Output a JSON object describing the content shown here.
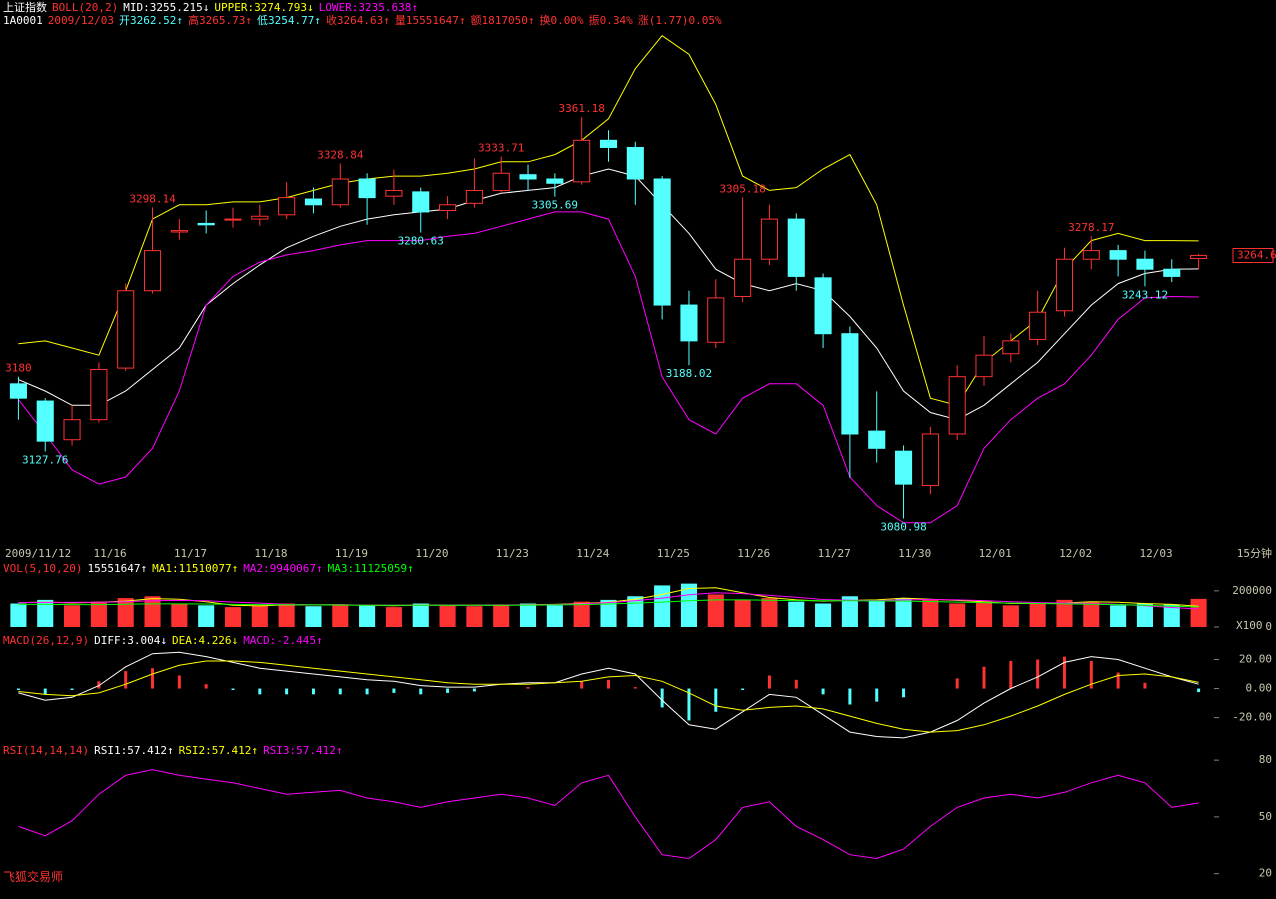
{
  "header": {
    "title_line": [
      {
        "text": "上证指数",
        "color": "#ffffff"
      },
      {
        "text": "BOLL(20,2)",
        "color": "#ff3232"
      },
      {
        "text": "MID:3255.215↓",
        "color": "#ffffff"
      },
      {
        "text": "UPPER:3274.793↓",
        "color": "#ffff00"
      },
      {
        "text": "LOWER:3235.638↑",
        "color": "#ff00ff"
      }
    ],
    "info_line": [
      {
        "text": "1A0001",
        "color": "#ffffff"
      },
      {
        "text": "2009/12/03",
        "color": "#ff3232"
      },
      {
        "text": "开3262.52↑",
        "color": "#54ffff"
      },
      {
        "text": "高3265.73↑",
        "color": "#ff3232"
      },
      {
        "text": "低3254.77↑",
        "color": "#54ffff"
      },
      {
        "text": "收3264.63↑",
        "color": "#ff3232"
      },
      {
        "text": "量15551647↑",
        "color": "#ff3232"
      },
      {
        "text": "额1817050↑",
        "color": "#ff3232"
      },
      {
        "text": "换0.00%",
        "color": "#ff3232"
      },
      {
        "text": "振0.34%",
        "color": "#ff3232"
      },
      {
        "text": "涨(1.77)0.05%",
        "color": "#ff3232"
      }
    ],
    "software": "飞狐交易师"
  },
  "chart_data": [
    {
      "type": "candlestick",
      "period": "15分钟",
      "x": [
        "2009/11/12",
        null,
        null,
        "11/16",
        null,
        null,
        "11/17",
        null,
        null,
        "11/18",
        null,
        null,
        "11/19",
        null,
        null,
        "11/20",
        null,
        null,
        "11/23",
        null,
        null,
        "11/24",
        null,
        null,
        "11/25",
        null,
        null,
        "11/26",
        null,
        null,
        "11/27",
        null,
        null,
        "11/30",
        null,
        null,
        "12/01",
        null,
        null,
        "12/02",
        null,
        null,
        "12/03",
        null,
        null
      ],
      "open": [
        3175,
        3163,
        3136,
        3150,
        3186,
        3240,
        3281,
        3287,
        3290,
        3290,
        3293,
        3304,
        3300,
        3318,
        3306,
        3309,
        3296,
        3301,
        3310,
        3321,
        3318,
        3316,
        3345,
        3340,
        3318,
        3230,
        3204,
        3236,
        3262,
        3290,
        3249,
        3210,
        3142,
        3128,
        3104,
        3140,
        3180,
        3196,
        3206,
        3226,
        3262,
        3268,
        3262,
        3255,
        3262.52
      ],
      "high": [
        3180,
        3165,
        3160,
        3190,
        3245,
        3298.14,
        3290,
        3296,
        3298,
        3300,
        3315.85,
        3312,
        3328.84,
        3322,
        3324.52,
        3312,
        3306,
        3332.33,
        3333.71,
        3328,
        3322,
        3361.18,
        3352,
        3344,
        3320,
        3240,
        3248,
        3305.18,
        3300,
        3294,
        3252,
        3215,
        3169.75,
        3132,
        3145,
        3188,
        3208.38,
        3210,
        3240,
        3270,
        3278.17,
        3272,
        3268,
        3262,
        3265.73
      ],
      "low": [
        3150,
        3127.76,
        3132,
        3148,
        3184,
        3238,
        3275.6,
        3280,
        3284,
        3285.34,
        3290,
        3294,
        3298,
        3286.06,
        3300,
        3280.63,
        3290,
        3298,
        3308.1,
        3310,
        3305.69,
        3314,
        3330,
        3300,
        3220,
        3188.02,
        3200,
        3232,
        3258,
        3240,
        3200,
        3109.36,
        3120,
        3080.98,
        3098,
        3136,
        3173.67,
        3190,
        3202,
        3222,
        3255,
        3250,
        3243.12,
        3246,
        3254.77
      ],
      "close": [
        3165,
        3135,
        3150,
        3185,
        3240,
        3268,
        3282,
        3286,
        3290,
        3292,
        3305,
        3300,
        3318,
        3305,
        3310,
        3295,
        3300,
        3310,
        3322,
        3318,
        3315,
        3345,
        3340,
        3318,
        3230,
        3205,
        3235,
        3262,
        3290,
        3250,
        3210,
        3140,
        3130,
        3105,
        3140,
        3180,
        3195,
        3205,
        3225,
        3262,
        3268,
        3262,
        3255,
        3250,
        3264.63
      ],
      "up_color": "#ff3232",
      "down_color": "#54ffff",
      "high_label_color": "#ff3232",
      "low_label_color": "#54ffff",
      "lines": [
        {
          "color": "#ffff00",
          "values": [
            3203,
            3205,
            3200,
            3195,
            3240,
            3290,
            3300,
            3300,
            3302,
            3302,
            3305,
            3310,
            3315,
            3318,
            3320,
            3320,
            3322,
            3325,
            3330,
            3330,
            3335,
            3345,
            3360,
            3395,
            3418,
            3405,
            3370,
            3320,
            3310,
            3312,
            3325,
            3335,
            3300,
            3230,
            3165,
            3160,
            3190,
            3205,
            3220,
            3255,
            3275,
            3280,
            3275,
            3275,
            3274.793
          ]
        },
        {
          "color": "#ffffff",
          "values": [
            3178,
            3170,
            3160,
            3160,
            3170,
            3185,
            3200,
            3230,
            3245,
            3258,
            3270,
            3278,
            3285,
            3290,
            3293,
            3295,
            3297,
            3303,
            3308,
            3310,
            3312,
            3320,
            3325,
            3320,
            3300,
            3280,
            3255,
            3245,
            3240,
            3245,
            3240,
            3222,
            3200,
            3170,
            3155,
            3150,
            3160,
            3175,
            3190,
            3210,
            3230,
            3245,
            3252,
            3255,
            3255.215
          ]
        },
        {
          "color": "#ff00ff",
          "values": [
            3164,
            3140,
            3115,
            3105,
            3110,
            3130,
            3170,
            3230,
            3250,
            3260,
            3265,
            3268,
            3272,
            3275,
            3275,
            3275,
            3278,
            3280,
            3285,
            3290,
            3295,
            3295,
            3290,
            3250,
            3180,
            3150,
            3140,
            3165,
            3175,
            3175,
            3160,
            3110,
            3090,
            3078,
            3078,
            3090,
            3130,
            3150,
            3165,
            3175,
            3195,
            3220,
            3235,
            3236,
            3235.638
          ]
        }
      ],
      "price_tag": 3264.6,
      "ylim": [
        3066,
        3422
      ]
    },
    {
      "type": "volume",
      "info": [
        {
          "text": "VOL(5,10,20)",
          "color": "#ff3232"
        },
        {
          "text": "15551647↑",
          "color": "#ffffff"
        },
        {
          "text": "MA1:11510077↑",
          "color": "#ffff00"
        },
        {
          "text": "MA2:9940067↑",
          "color": "#ff00ff"
        },
        {
          "text": "MA3:11125059↑",
          "color": "#00ff00"
        }
      ],
      "values": [
        130000,
        150000,
        120000,
        140000,
        160000,
        170000,
        130000,
        120000,
        110000,
        120000,
        130000,
        115000,
        125000,
        120000,
        110000,
        130000,
        120000,
        115000,
        125000,
        130000,
        120000,
        140000,
        150000,
        170000,
        230000,
        240000,
        180000,
        150000,
        160000,
        140000,
        130000,
        170000,
        150000,
        160000,
        150000,
        130000,
        140000,
        120000,
        130000,
        150000,
        140000,
        120000,
        130000,
        125000,
        155516
      ],
      "lines": [
        {
          "color": "#ffff00",
          "values": [
            135000,
            138000,
            133000,
            137000,
            143000,
            157000,
            153000,
            140000,
            120000,
            117000,
            123000,
            122000,
            123000,
            120000,
            118000,
            122000,
            120000,
            121000,
            120000,
            123000,
            125000,
            130000,
            137000,
            153000,
            180000,
            213000,
            217000,
            190000,
            163000,
            150000,
            143000,
            147000,
            150000,
            160000,
            153000,
            147000,
            140000,
            130000,
            130000,
            133000,
            140000,
            137000,
            130000,
            125000,
            115101
          ]
        },
        {
          "color": "#ff00ff",
          "values": [
            135000,
            136000,
            136000,
            137000,
            140000,
            145000,
            147000,
            145000,
            138000,
            132000,
            125000,
            122000,
            122000,
            121000,
            120000,
            120000,
            120000,
            120000,
            121000,
            122000,
            124000,
            128000,
            135000,
            145000,
            160000,
            178000,
            190000,
            185000,
            175000,
            165000,
            152000,
            148000,
            146000,
            150000,
            152000,
            150000,
            146000,
            140000,
            135000,
            133000,
            130000,
            125000,
            118000,
            108000,
            99401
          ]
        },
        {
          "color": "#00ff00",
          "values": [
            125000,
            125000,
            124000,
            124000,
            126000,
            128000,
            128000,
            127000,
            125000,
            124000,
            123000,
            122000,
            121000,
            120000,
            120000,
            120000,
            120000,
            120000,
            120000,
            121000,
            122000,
            124000,
            127000,
            132000,
            138000,
            145000,
            150000,
            150000,
            148000,
            146000,
            145000,
            145000,
            144000,
            143000,
            141000,
            138000,
            135000,
            132000,
            130000,
            128000,
            126000,
            124000,
            120000,
            115000,
            111251
          ]
        }
      ],
      "unit_label": "X100",
      "ylim": [
        0,
        260000
      ],
      "yticks": [
        200000,
        0
      ]
    },
    {
      "type": "macd",
      "info": [
        {
          "text": "MACD(26,12,9)",
          "color": "#ff3232"
        },
        {
          "text": "DIFF:3.004↓",
          "color": "#ffffff"
        },
        {
          "text": "DEA:4.226↓",
          "color": "#ffff00"
        },
        {
          "text": "MACD:-2.445↑",
          "color": "#ff00ff"
        }
      ],
      "values": [
        -1,
        -4,
        -1,
        5,
        12,
        14,
        9,
        3,
        -1,
        -4,
        -4,
        -4,
        -4,
        -4,
        -3,
        -4,
        -3,
        -2,
        0,
        1,
        0,
        5,
        6,
        1,
        -13,
        -22,
        -16,
        -1,
        9,
        6,
        -4,
        -11,
        -9,
        -6,
        0,
        7,
        15,
        19,
        20,
        22,
        19,
        11,
        4,
        0,
        -2.445
      ],
      "up_color": "#ff3232",
      "down_color": "#54ffff",
      "lines": [
        {
          "color": "#ffffff",
          "values": [
            -3,
            -8,
            -6,
            2,
            15,
            24,
            25,
            22,
            18,
            14,
            12,
            10,
            8,
            6,
            5,
            2,
            1,
            1,
            3,
            4,
            4,
            10,
            14,
            10,
            -8,
            -25,
            -28,
            -16,
            -4,
            -6,
            -18,
            -30,
            -33,
            -34,
            -30,
            -22,
            -10,
            0,
            8,
            18,
            22,
            20,
            14,
            8,
            3.004
          ]
        },
        {
          "color": "#ffff00",
          "values": [
            -2,
            -4,
            -5,
            -3,
            3,
            10,
            16,
            19,
            19,
            18,
            16,
            14,
            12,
            10,
            8,
            6,
            4,
            3,
            3,
            3,
            4,
            5,
            8,
            9,
            5,
            -3,
            -12,
            -15,
            -13,
            -12,
            -14,
            -19,
            -24,
            -28,
            -30,
            -29,
            -25,
            -19,
            -12,
            -4,
            3,
            9,
            10,
            8,
            4.226
          ]
        }
      ],
      "ylim": [
        -32,
        30
      ],
      "yticks": [
        {
          "value": 20,
          "label": "20.00"
        },
        {
          "value": 0,
          "label": "0.00"
        },
        {
          "value": -20,
          "label": "-20.00"
        }
      ]
    },
    {
      "type": "line",
      "info": [
        {
          "text": "RSI(14,14,14)",
          "color": "#ff3232"
        },
        {
          "text": "RSI1:57.412↑",
          "color": "#ffffff"
        },
        {
          "text": "RSI2:57.412↑",
          "color": "#ffff00"
        },
        {
          "text": "RSI3:57.412↑",
          "color": "#ff00ff"
        }
      ],
      "lines": [
        {
          "color": "#ff00ff",
          "values": [
            45,
            40,
            48,
            62,
            72,
            75,
            72,
            70,
            68,
            65,
            62,
            63,
            64,
            60,
            58,
            55,
            58,
            60,
            62,
            60,
            56,
            68,
            72,
            50,
            30,
            28,
            38,
            55,
            58,
            45,
            38,
            30,
            28,
            33,
            45,
            55,
            60,
            62,
            60,
            63,
            68,
            72,
            68,
            55,
            57.412
          ]
        }
      ],
      "ylim": [
        14,
        88
      ],
      "yticks": [
        80,
        50,
        20
      ]
    }
  ]
}
